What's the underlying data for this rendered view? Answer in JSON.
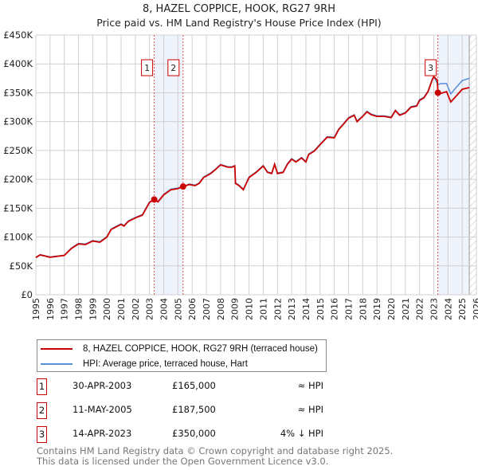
{
  "chart_data": {
    "type": "line",
    "title": "8, HAZEL COPPICE, HOOK, RG27 9RH",
    "subtitle": "Price paid vs. HM Land Registry's House Price Index (HPI)",
    "xlabel": "",
    "ylabel": "",
    "xlim": [
      1995,
      2026
    ],
    "ylim": [
      0,
      450000
    ],
    "grid": true,
    "y_ticks": [
      {
        "value": 0,
        "label": "£0"
      },
      {
        "value": 50000,
        "label": "£50K"
      },
      {
        "value": 100000,
        "label": "£100K"
      },
      {
        "value": 150000,
        "label": "£150K"
      },
      {
        "value": 200000,
        "label": "£200K"
      },
      {
        "value": 250000,
        "label": "£250K"
      },
      {
        "value": 300000,
        "label": "£300K"
      },
      {
        "value": 350000,
        "label": "£350K"
      },
      {
        "value": 400000,
        "label": "£400K"
      },
      {
        "value": 450000,
        "label": "£450K"
      }
    ],
    "x_ticks": [
      "1995",
      "1996",
      "1997",
      "1998",
      "1999",
      "2000",
      "2001",
      "2002",
      "2003",
      "2004",
      "2005",
      "2006",
      "2007",
      "2008",
      "2009",
      "2010",
      "2011",
      "2012",
      "2013",
      "2014",
      "2015",
      "2016",
      "2017",
      "2018",
      "2019",
      "2020",
      "2021",
      "2022",
      "2023",
      "2024",
      "2025",
      "2026"
    ],
    "series": [
      {
        "name": "8, HAZEL COPPICE, HOOK, RG27 9RH (terraced house)",
        "color": "#cc0000",
        "x": [
          1995,
          1995.3,
          1996,
          1997,
          1997.5,
          1998,
          1998.5,
          1999,
          1999.5,
          2000,
          2000.3,
          2001,
          2001.2,
          2001.5,
          2002,
          2002.5,
          2002.7,
          2003,
          2003.33,
          2003.6,
          2004,
          2004.5,
          2005,
          2005.36,
          2005.8,
          2006.2,
          2006.5,
          2006.8,
          2007.3,
          2007.6,
          2008,
          2008.5,
          2008.8,
          2009,
          2009.05,
          2009.3,
          2009.6,
          2010,
          2010.5,
          2011,
          2011.3,
          2011.6,
          2011.8,
          2012,
          2012.4,
          2012.7,
          2013,
          2013.3,
          2013.7,
          2014,
          2014.2,
          2014.6,
          2015,
          2015.5,
          2016,
          2016.3,
          2016.7,
          2017,
          2017.4,
          2017.6,
          2018,
          2018.3,
          2018.6,
          2019,
          2019.5,
          2020,
          2020.3,
          2020.6,
          2021,
          2021.4,
          2021.8,
          2022,
          2022.3,
          2022.6,
          2022.9,
          2023.0,
          2023.25,
          2023.29,
          2023.5,
          2023.9,
          2024.2,
          2024.5,
          2025.0,
          2025.5
        ],
        "y": [
          64500,
          69000,
          65000,
          68000,
          80000,
          88000,
          87000,
          93000,
          91000,
          100000,
          113000,
          122000,
          119000,
          127000,
          133000,
          138000,
          147000,
          160000,
          165000,
          161000,
          173000,
          182000,
          184000,
          187500,
          191000,
          189000,
          193000,
          203000,
          210000,
          216000,
          225000,
          221000,
          221000,
          223000,
          193000,
          189000,
          182000,
          203000,
          212000,
          223000,
          212000,
          210000,
          226000,
          210000,
          212000,
          226000,
          235000,
          230000,
          237000,
          230000,
          243000,
          249000,
          260000,
          273000,
          272000,
          286000,
          297000,
          306000,
          311000,
          300000,
          309000,
          317000,
          312000,
          309000,
          309000,
          307000,
          319000,
          311000,
          315000,
          325000,
          327000,
          337000,
          341000,
          352000,
          373000,
          378000,
          372000,
          350000,
          349000,
          352000,
          334000,
          342000,
          356000,
          359000
        ]
      },
      {
        "name": "HPI: Average price, terraced house, Hart",
        "color": "#5b8fd6",
        "x": [
          1995,
          1995.3,
          1996,
          1997,
          1997.5,
          1998,
          1998.5,
          1999,
          1999.5,
          2000,
          2000.3,
          2001,
          2001.2,
          2001.5,
          2002,
          2002.5,
          2002.7,
          2003,
          2003.33,
          2003.6,
          2004,
          2004.5,
          2005,
          2005.36,
          2005.8,
          2006.2,
          2006.5,
          2006.8,
          2007.3,
          2007.6,
          2008,
          2008.5,
          2008.8,
          2009,
          2009.05,
          2009.3,
          2009.6,
          2010,
          2010.5,
          2011,
          2011.3,
          2011.6,
          2011.8,
          2012,
          2012.4,
          2012.7,
          2013,
          2013.3,
          2013.7,
          2014,
          2014.2,
          2014.6,
          2015,
          2015.5,
          2016,
          2016.3,
          2016.7,
          2017,
          2017.4,
          2017.6,
          2018,
          2018.3,
          2018.6,
          2019,
          2019.5,
          2020,
          2020.3,
          2020.6,
          2021,
          2021.4,
          2021.8,
          2022,
          2022.3,
          2022.6,
          2022.9,
          2023.0,
          2023.3,
          2023.5,
          2023.9,
          2024.2,
          2024.5,
          2025.0,
          2025.5
        ],
        "y": [
          65000,
          69500,
          65500,
          68500,
          81000,
          89000,
          88000,
          94000,
          92000,
          101000,
          114000,
          123000,
          120000,
          128000,
          134000,
          139000,
          148000,
          161000,
          165000,
          162000,
          174000,
          183000,
          185000,
          187500,
          192000,
          190000,
          194000,
          204000,
          211000,
          217000,
          226000,
          222000,
          222000,
          224000,
          194000,
          190000,
          183000,
          204000,
          213000,
          224000,
          213000,
          211000,
          227000,
          211000,
          213000,
          227000,
          236000,
          231000,
          238000,
          231000,
          244000,
          250000,
          261000,
          274000,
          273000,
          287000,
          298000,
          307000,
          312000,
          301000,
          310000,
          318000,
          313000,
          310000,
          310000,
          308000,
          320000,
          312000,
          316000,
          326000,
          328000,
          338000,
          342000,
          353000,
          374000,
          378000,
          364000,
          366000,
          366000,
          348000,
          357000,
          371000,
          375000
        ]
      }
    ],
    "sales": [
      {
        "id": "1",
        "x": 2003.33,
        "value": 165000
      },
      {
        "id": "2",
        "x": 2005.36,
        "value": 187500
      },
      {
        "id": "3",
        "x": 2023.29,
        "value": 350000
      }
    ],
    "shaded_ranges": [
      [
        2003.33,
        2005.36
      ],
      [
        2023.29,
        2025.5
      ]
    ],
    "forecast_hatch_from": 2025.5,
    "legend_placement": "below"
  },
  "legend": [
    {
      "label": "8, HAZEL COPPICE, HOOK, RG27 9RH (terraced house)",
      "color": "#cc0000"
    },
    {
      "label": "HPI: Average price, terraced house, Hart",
      "color": "#5b8fd6"
    }
  ],
  "transactions": [
    {
      "id": "1",
      "date": "30-APR-2003",
      "price": "£165,000",
      "hpi": "≈ HPI"
    },
    {
      "id": "2",
      "date": "11-MAY-2005",
      "price": "£187,500",
      "hpi": "≈ HPI"
    },
    {
      "id": "3",
      "date": "14-APR-2023",
      "price": "£350,000",
      "hpi": "4% ↓ HPI"
    }
  ],
  "footer": {
    "line1": "Contains HM Land Registry data © Crown copyright and database right 2025.",
    "line2": "This data is licensed under the Open Government Licence v3.0."
  }
}
